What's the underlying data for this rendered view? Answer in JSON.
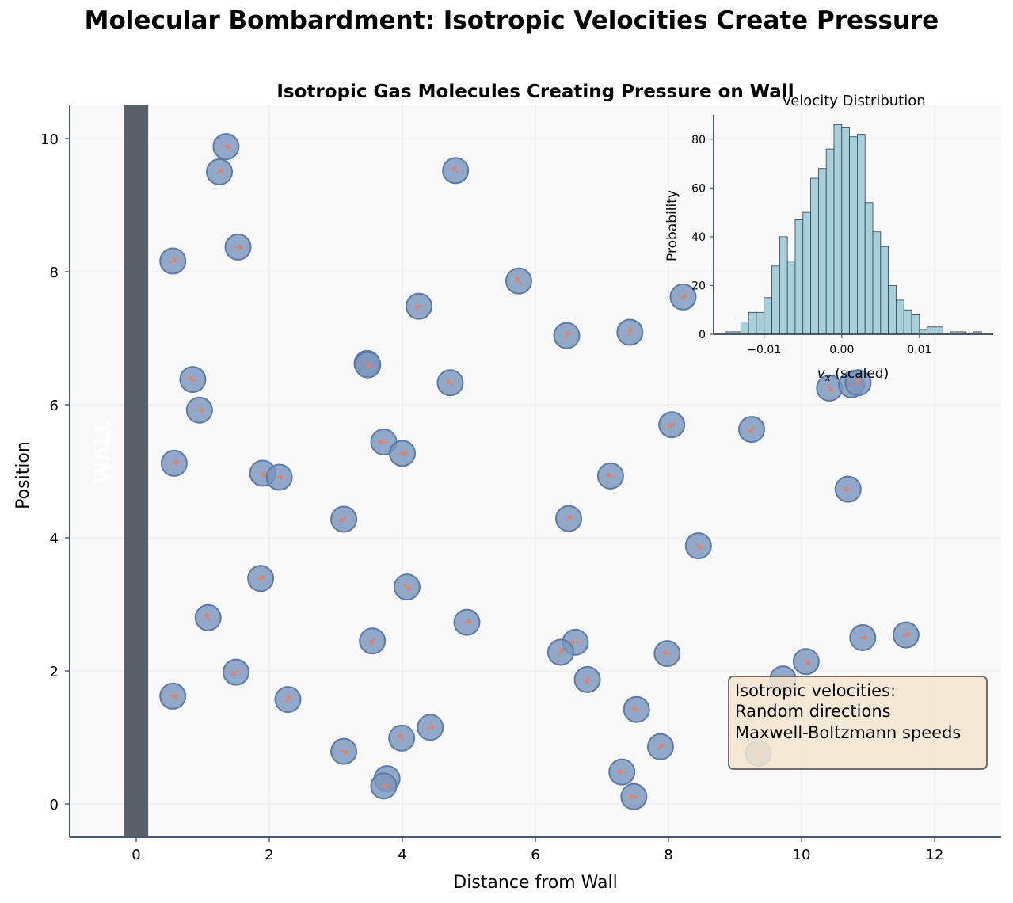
{
  "figure_title": "Molecular Bombardment: Isotropic Velocities Create Pressure",
  "colors": {
    "background": "#f9f9f9",
    "wall": "#586068",
    "wall_label": "#ffffff",
    "molecule_fill": "#7b96bd",
    "molecule_edge": "#5c7aa8",
    "arrow": "#e0806a",
    "hist_bar": "#a8d0dc",
    "hist_edge": "#2f3e4a",
    "axis": "#4a5870",
    "annotation_bg": "#f5e6d0",
    "annotation_edge": "#6e6e6e"
  },
  "chart_data": [
    {
      "type": "scatter",
      "title": "Isotropic Gas Molecules Creating Pressure on Wall",
      "xlabel": "Distance from Wall",
      "ylabel": "Position",
      "xlim": [
        -1,
        13
      ],
      "ylim": [
        -0.5,
        10.5
      ],
      "xticks": [
        0,
        2,
        4,
        6,
        8,
        10,
        12
      ],
      "yticks": [
        0,
        2,
        4,
        6,
        8,
        10
      ],
      "grid": true,
      "wall": {
        "x_range": [
          -0.18,
          0.18
        ],
        "label": "WALL"
      },
      "annotation": {
        "lines": [
          "Isotropic velocities:",
          "Random directions",
          "Maxwell-Boltzmann speeds"
        ],
        "anchor_data": [
          9.0,
          1.85
        ]
      },
      "molecules": [
        {
          "x": 1.35,
          "y": 9.88,
          "dx": 0.06,
          "dy": -0.02
        },
        {
          "x": 1.25,
          "y": 9.5,
          "dx": 0.05,
          "dy": 0.03
        },
        {
          "x": 4.8,
          "y": 9.52,
          "dx": -0.05,
          "dy": 0.05
        },
        {
          "x": 0.55,
          "y": 8.16,
          "dx": 0.06,
          "dy": 0.03
        },
        {
          "x": 1.53,
          "y": 8.37,
          "dx": 0.06,
          "dy": 0.0
        },
        {
          "x": 5.75,
          "y": 7.86,
          "dx": -0.04,
          "dy": 0.05
        },
        {
          "x": 4.25,
          "y": 7.48,
          "dx": -0.06,
          "dy": -0.03
        },
        {
          "x": 8.22,
          "y": 7.62,
          "dx": 0.06,
          "dy": 0.03
        },
        {
          "x": 6.47,
          "y": 7.04,
          "dx": 0.02,
          "dy": 0.05
        },
        {
          "x": 7.42,
          "y": 7.09,
          "dx": 0.02,
          "dy": 0.05
        },
        {
          "x": 3.47,
          "y": 6.62,
          "dx": -0.06,
          "dy": 0.03
        },
        {
          "x": 3.48,
          "y": 6.6,
          "dx": 0.04,
          "dy": -0.03
        },
        {
          "x": 0.85,
          "y": 6.38,
          "dx": -0.05,
          "dy": 0.03
        },
        {
          "x": 4.72,
          "y": 6.33,
          "dx": -0.05,
          "dy": 0.04
        },
        {
          "x": 0.95,
          "y": 5.92,
          "dx": 0.06,
          "dy": 0.0
        },
        {
          "x": 10.42,
          "y": 6.25,
          "dx": 0.04,
          "dy": -0.04
        },
        {
          "x": 10.75,
          "y": 6.3,
          "dx": -0.06,
          "dy": 0.0
        },
        {
          "x": 10.85,
          "y": 6.33,
          "dx": 0.0,
          "dy": 0.03
        },
        {
          "x": 8.05,
          "y": 5.7,
          "dx": -0.05,
          "dy": -0.03
        },
        {
          "x": 9.25,
          "y": 5.63,
          "dx": -0.04,
          "dy": -0.04
        },
        {
          "x": 0.57,
          "y": 5.12,
          "dx": 0.06,
          "dy": 0.02
        },
        {
          "x": 3.72,
          "y": 5.44,
          "dx": -0.06,
          "dy": 0.01
        },
        {
          "x": 4.0,
          "y": 5.27,
          "dx": 0.06,
          "dy": 0.0
        },
        {
          "x": 1.9,
          "y": 4.97,
          "dx": 0.03,
          "dy": -0.05
        },
        {
          "x": 2.15,
          "y": 4.91,
          "dx": 0.06,
          "dy": 0.0
        },
        {
          "x": 7.13,
          "y": 4.93,
          "dx": -0.06,
          "dy": 0.02
        },
        {
          "x": 10.7,
          "y": 4.73,
          "dx": -0.06,
          "dy": 0.0
        },
        {
          "x": 3.12,
          "y": 4.28,
          "dx": -0.05,
          "dy": -0.03
        },
        {
          "x": 6.5,
          "y": 4.29,
          "dx": 0.04,
          "dy": 0.04
        },
        {
          "x": 8.45,
          "y": 3.88,
          "dx": 0.05,
          "dy": -0.04
        },
        {
          "x": 1.87,
          "y": 3.39,
          "dx": 0.06,
          "dy": 0.02
        },
        {
          "x": 4.07,
          "y": 3.26,
          "dx": 0.05,
          "dy": -0.04
        },
        {
          "x": 1.08,
          "y": 2.8,
          "dx": -0.03,
          "dy": 0.05
        },
        {
          "x": 4.97,
          "y": 2.73,
          "dx": 0.06,
          "dy": 0.01
        },
        {
          "x": 3.55,
          "y": 2.45,
          "dx": -0.03,
          "dy": -0.05
        },
        {
          "x": 6.6,
          "y": 2.43,
          "dx": -0.06,
          "dy": 0.01
        },
        {
          "x": 6.38,
          "y": 2.28,
          "dx": 0.03,
          "dy": 0.05
        },
        {
          "x": 7.98,
          "y": 2.26,
          "dx": -0.06,
          "dy": 0.01
        },
        {
          "x": 10.92,
          "y": 2.5,
          "dx": 0.06,
          "dy": 0.0
        },
        {
          "x": 11.57,
          "y": 2.54,
          "dx": 0.06,
          "dy": 0.02
        },
        {
          "x": 10.07,
          "y": 2.14,
          "dx": 0.06,
          "dy": -0.03
        },
        {
          "x": 1.5,
          "y": 1.98,
          "dx": -0.05,
          "dy": -0.03
        },
        {
          "x": 6.78,
          "y": 1.87,
          "dx": -0.02,
          "dy": -0.05
        },
        {
          "x": 9.72,
          "y": 1.88,
          "dx": 0.04,
          "dy": 0.04
        },
        {
          "x": 0.55,
          "y": 1.62,
          "dx": 0.06,
          "dy": -0.02
        },
        {
          "x": 2.28,
          "y": 1.57,
          "dx": 0.04,
          "dy": 0.04
        },
        {
          "x": 7.52,
          "y": 1.42,
          "dx": -0.06,
          "dy": 0.02
        },
        {
          "x": 4.42,
          "y": 1.15,
          "dx": 0.06,
          "dy": 0.02
        },
        {
          "x": 3.99,
          "y": 0.99,
          "dx": -0.03,
          "dy": 0.05
        },
        {
          "x": 7.88,
          "y": 0.86,
          "dx": 0.04,
          "dy": 0.04
        },
        {
          "x": 3.12,
          "y": 0.79,
          "dx": 0.05,
          "dy": -0.03
        },
        {
          "x": 9.35,
          "y": 0.76,
          "dx": 0.03,
          "dy": -0.05
        },
        {
          "x": 7.3,
          "y": 0.48,
          "dx": -0.06,
          "dy": 0.01
        },
        {
          "x": 3.77,
          "y": 0.38,
          "dx": 0.05,
          "dy": 0.02
        },
        {
          "x": 3.72,
          "y": 0.27,
          "dx": 0.06,
          "dy": 0.0
        },
        {
          "x": 7.48,
          "y": 0.11,
          "dx": -0.06,
          "dy": 0.0
        }
      ]
    },
    {
      "type": "bar",
      "title": "Velocity Distribution",
      "xlabel_prefix": "v",
      "xlabel_sub": "x",
      "xlabel_suffix": " (scaled)",
      "ylabel": "Probability",
      "xlim": [
        -0.0165,
        0.0195
      ],
      "ylim": [
        0,
        90
      ],
      "xticks": [
        -0.01,
        0.0,
        0.01
      ],
      "xtick_labels": [
        "−0.01",
        "0.00",
        "0.01"
      ],
      "yticks": [
        0,
        20,
        40,
        60,
        80
      ],
      "bin_edges_start": -0.015,
      "bin_width": 0.001,
      "values": [
        1,
        1,
        5,
        9,
        9,
        15,
        28,
        40,
        30,
        47,
        50,
        64,
        68,
        76,
        86,
        85,
        81,
        82,
        54,
        42,
        36,
        20,
        14,
        10,
        8,
        2,
        3,
        3,
        0,
        1,
        1,
        0,
        1
      ]
    }
  ]
}
